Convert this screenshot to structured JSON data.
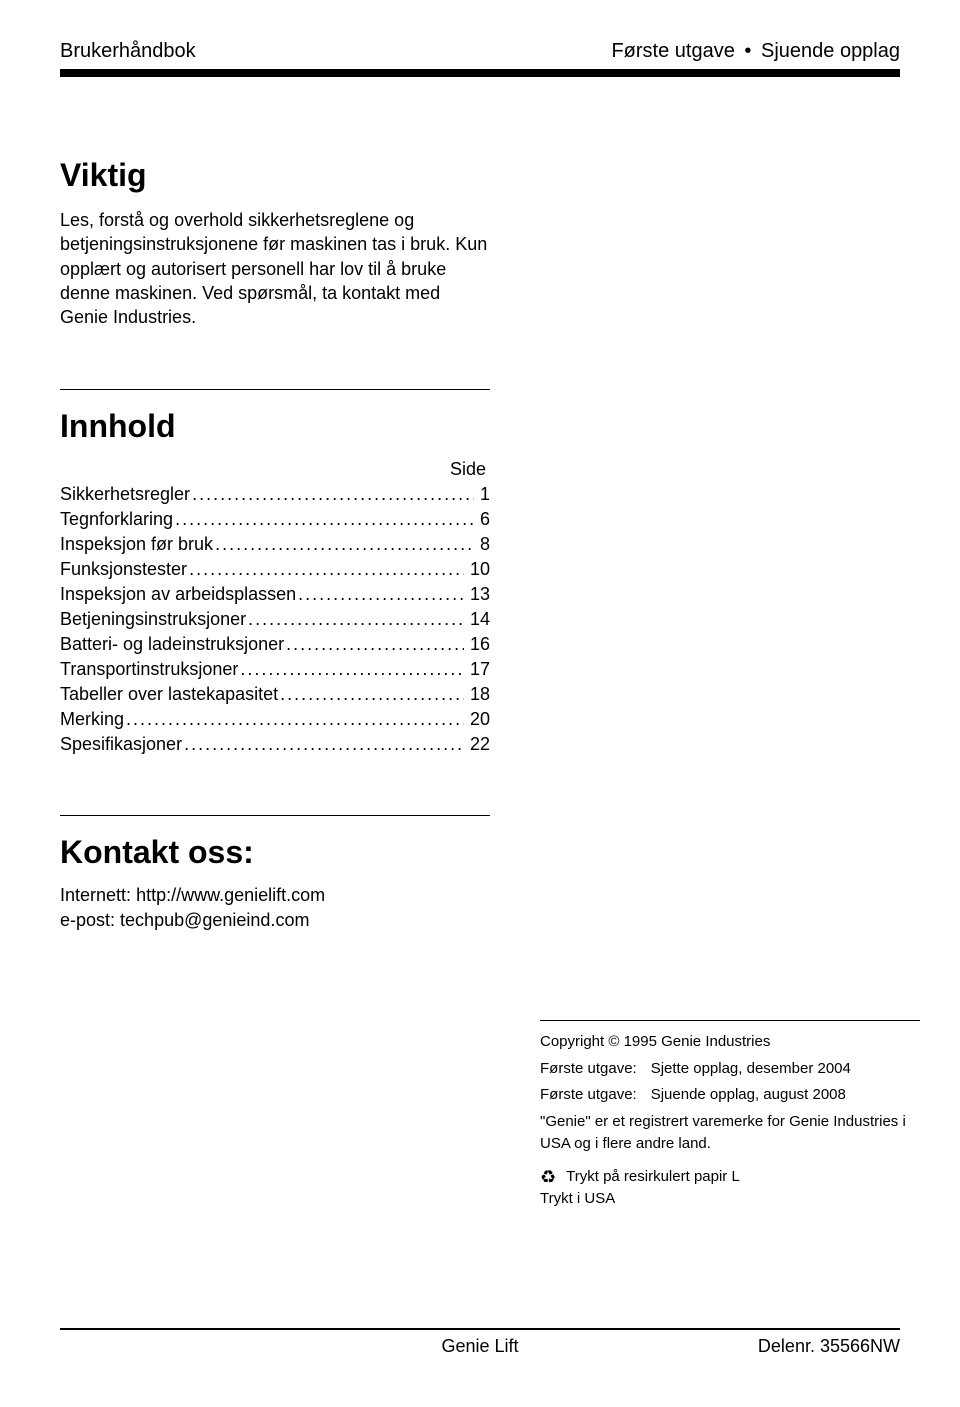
{
  "colors": {
    "text": "#000000",
    "background": "#ffffff",
    "rule": "#000000"
  },
  "typography": {
    "body_fontsize_pt": 13,
    "title_fontsize_pt": 24,
    "header_fontsize_pt": 15,
    "copyright_fontsize_pt": 11,
    "font_family": "Arial"
  },
  "header": {
    "left": "Brukerhåndbok",
    "right_a": "Første utgave",
    "bullet": "•",
    "right_b": "Sjuende opplag"
  },
  "important": {
    "title": "Viktig",
    "paragraphs": [
      "Les, forstå og overhold sikkerhetsreglene og betjeningsinstruksjonene før maskinen tas i bruk. Kun opplært og autorisert personell har lov til å bruke denne maskinen. Ved spørsmål, ta kontakt med Genie Industries."
    ]
  },
  "toc": {
    "title": "Innhold",
    "side_label": "Side",
    "items": [
      {
        "label": "Sikkerhetsregler",
        "page": "1"
      },
      {
        "label": "Tegnforklaring",
        "page": "6"
      },
      {
        "label": "Inspeksjon før bruk",
        "page": "8"
      },
      {
        "label": "Funksjonstester",
        "page": "10"
      },
      {
        "label": "Inspeksjon av arbeidsplassen",
        "page": "13"
      },
      {
        "label": "Betjeningsinstruksjoner",
        "page": "14"
      },
      {
        "label": "Batteri- og ladeinstruksjoner",
        "page": "16"
      },
      {
        "label": "Transportinstruksjoner",
        "page": "17"
      },
      {
        "label": "Tabeller over lastekapasitet",
        "page": "18"
      },
      {
        "label": "Merking",
        "page": "20"
      },
      {
        "label": "Spesifikasjoner",
        "page": "22"
      }
    ]
  },
  "contact": {
    "title": "Kontakt  oss:",
    "internet_label": "Internett:",
    "internet_value": "http://www.genielift.com",
    "email_label": "e-post:",
    "email_value": "techpub@genieind.com"
  },
  "copyright": {
    "line1": "Copyright © 1995 Genie Industries",
    "ed1_label": "Første utgave:",
    "ed1_value": "Sjette opplag, desember 2004",
    "ed2_label": "Første utgave:",
    "ed2_value": "Sjuende opplag, august 2008",
    "trademark": "\"Genie\" er et registrert varemerke for Genie Industries i USA og i flere andre land.",
    "recycle_icon": "♻",
    "recycled_text": "Trykt på resirkulert papir  L",
    "printed_in": "Trykt i USA"
  },
  "footer": {
    "left": "",
    "center": "Genie Lift",
    "right": "Delenr. 35566NW"
  }
}
